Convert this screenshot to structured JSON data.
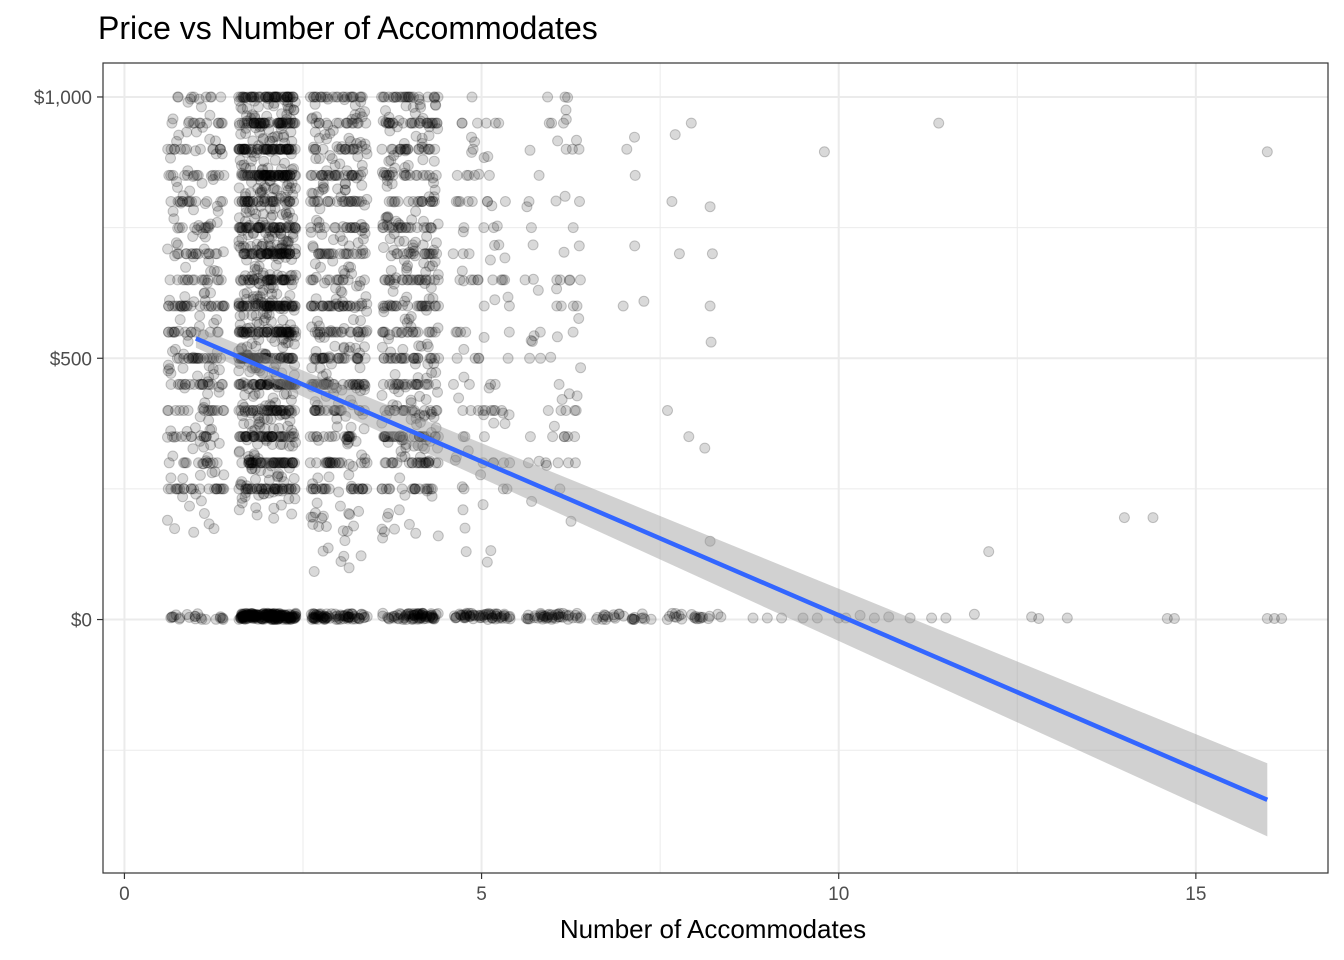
{
  "chart_data": {
    "type": "scatter",
    "title": "Price vs Number of Accommodates",
    "xlabel": "Number of Accommodates",
    "ylabel": "",
    "xlim": [
      -0.3,
      16.85
    ],
    "ylim": [
      -485,
      1065
    ],
    "x_ticks": [
      0,
      5,
      10,
      15
    ],
    "x_tick_labels": [
      "0",
      "5",
      "10",
      "15"
    ],
    "y_ticks": [
      0,
      500,
      1000
    ],
    "y_tick_labels": [
      "$0",
      "$500",
      "$1,000"
    ],
    "x_minor": [
      2.5,
      7.5,
      12.5
    ],
    "y_minor": [
      -250,
      250,
      750
    ],
    "grid": true,
    "theme": "black-and-white",
    "colors": {
      "points": "#000000",
      "points_opacity": 0.15,
      "trend_line": "#3366FF",
      "confidence_band": "#999999",
      "grid": "#ebebeb",
      "panel_border": "#333333"
    },
    "series": [
      {
        "type": "points",
        "jitter": true,
        "clusters": [
          {
            "x": 1,
            "count": 360,
            "y_min": 150,
            "y_max": 1000,
            "zero_count": 22
          },
          {
            "x": 2,
            "count": 1150,
            "y_min": 175,
            "y_max": 1000,
            "zero_count": 220
          },
          {
            "x": 3,
            "count": 520,
            "y_min": 90,
            "y_max": 1000,
            "zero_count": 80
          },
          {
            "x": 4,
            "count": 500,
            "y_min": 150,
            "y_max": 1000,
            "zero_count": 75
          },
          {
            "x": 5,
            "count": 110,
            "y_min": 100,
            "y_max": 1000,
            "zero_count": 60
          },
          {
            "x": 6,
            "count": 75,
            "y_min": 180,
            "y_max": 1000,
            "zero_count": 45
          },
          {
            "x": 7,
            "count": 6,
            "y_min": 600,
            "y_max": 1000,
            "zero_count": 25
          },
          {
            "x": 8,
            "count": 9,
            "y_min": 150,
            "y_max": 1000,
            "zero_count": 22
          }
        ],
        "points": [
          [
            8.2,
            600
          ],
          [
            8.2,
            790
          ],
          [
            8.2,
            150
          ],
          [
            9.8,
            895
          ],
          [
            11.4,
            950
          ],
          [
            16.0,
            895
          ],
          [
            14.0,
            195
          ],
          [
            14.4,
            195
          ],
          [
            12.1,
            130
          ],
          [
            11.9,
            10
          ],
          [
            10.7,
            5
          ],
          [
            10.3,
            8
          ],
          [
            12.7,
            5
          ],
          [
            13.2,
            3
          ],
          [
            12.8,
            2
          ],
          [
            14.6,
            2
          ],
          [
            14.7,
            2
          ],
          [
            16.0,
            2
          ],
          [
            16.1,
            2
          ],
          [
            16.2,
            2
          ],
          [
            8.8,
            3
          ],
          [
            9.0,
            3
          ],
          [
            9.2,
            3
          ],
          [
            9.5,
            3
          ],
          [
            9.7,
            3
          ],
          [
            10.0,
            3
          ],
          [
            10.1,
            3
          ],
          [
            10.5,
            3
          ],
          [
            11.0,
            3
          ],
          [
            11.3,
            3
          ],
          [
            11.5,
            3
          ]
        ]
      },
      {
        "type": "linear-fit",
        "x": [
          1,
          16
        ],
        "y": [
          538,
          -345
        ],
        "ci_upper": [
          560,
          -275
        ],
        "ci_lower": [
          520,
          -415
        ]
      }
    ]
  }
}
